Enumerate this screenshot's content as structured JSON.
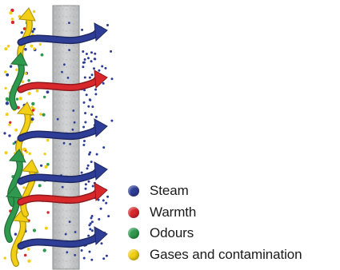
{
  "colors": {
    "steam": "#2e3e97",
    "warmth": "#d8282c",
    "odours": "#2f9a4e",
    "gases": "#f2cf14",
    "wall": "#c4c6c8"
  },
  "legend": [
    {
      "label": "Steam",
      "color": "#2e3e97"
    },
    {
      "label": "Warmth",
      "color": "#d8282c"
    },
    {
      "label": "Odours",
      "color": "#2f9a4e"
    },
    {
      "label": "Gases and contamination",
      "color": "#f2cf14"
    }
  ]
}
